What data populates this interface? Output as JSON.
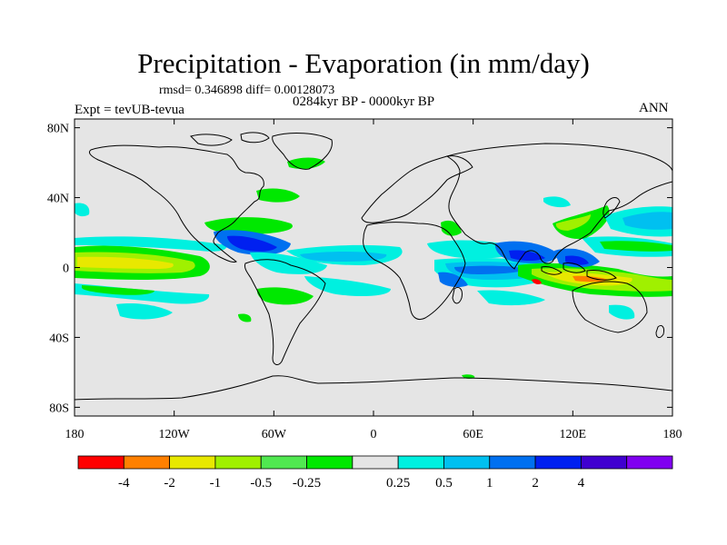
{
  "title": "Precipitation - Evaporation (in mm/day)",
  "stats_text": "rmsd= 0.346898 diff= 0.00128073",
  "period_text": "0284kyr BP - 0000kyr BP",
  "experiment_text": "Expt = tevUB-tevua",
  "season_text": "ANN",
  "map": {
    "lon_ticks": [
      {
        "lon": -180,
        "label": "180"
      },
      {
        "lon": -120,
        "label": "120W"
      },
      {
        "lon": -60,
        "label": "60W"
      },
      {
        "lon": 0,
        "label": "0"
      },
      {
        "lon": 60,
        "label": "60E"
      },
      {
        "lon": 120,
        "label": "120E"
      },
      {
        "lon": 180,
        "label": "180"
      }
    ],
    "lat_ticks": [
      {
        "lat": 80,
        "label": "80N"
      },
      {
        "lat": 40,
        "label": "40N"
      },
      {
        "lat": 0,
        "label": "0"
      },
      {
        "lat": -40,
        "label": "40S"
      },
      {
        "lat": -80,
        "label": "80S"
      }
    ],
    "lat_range": [
      -85,
      85
    ],
    "lon_range": [
      -180,
      180
    ],
    "background_color": "#e5e5e5",
    "coastline_color": "#000000"
  },
  "colorbar": {
    "colors": [
      "#ff0000",
      "#ff8000",
      "#e8e800",
      "#a0f000",
      "#50e850",
      "#00e800",
      "#e5e5e5",
      "#00f0e0",
      "#00c0f0",
      "#0070f0",
      "#0020f0",
      "#4000d0",
      "#8000f0"
    ],
    "labels": [
      "-4",
      "-2",
      "-1",
      "-0.5",
      "-0.25",
      "0.25",
      "0.5",
      "1",
      "2",
      "4"
    ]
  }
}
